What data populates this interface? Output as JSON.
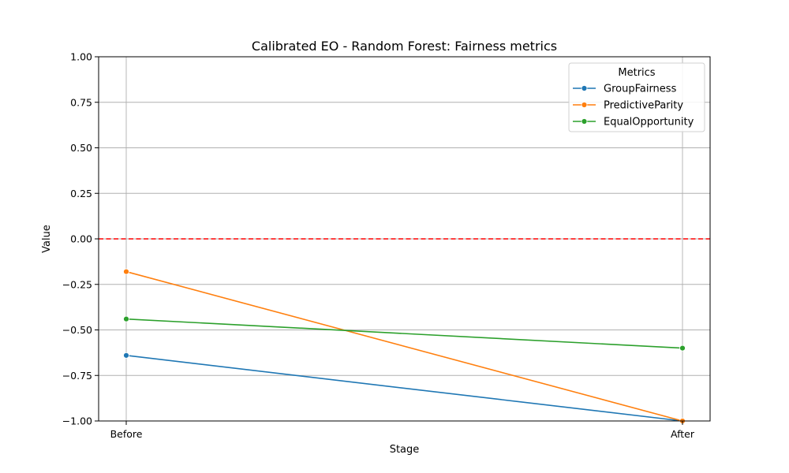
{
  "chart_data": {
    "type": "line",
    "title": "Calibrated EO - Random Forest: Fairness metrics",
    "xlabel": "Stage",
    "ylabel": "Value",
    "categories": [
      "Before",
      "After"
    ],
    "ylim": [
      -1.0,
      1.0
    ],
    "yticks": [
      -1.0,
      -0.75,
      -0.5,
      -0.25,
      0.0,
      0.25,
      0.5,
      0.75,
      1.0
    ],
    "ytick_labels": [
      "−1.00",
      "−0.75",
      "−0.50",
      "−0.25",
      "0.00",
      "0.25",
      "0.50",
      "0.75",
      "1.00"
    ],
    "grid": true,
    "legend": {
      "title": "Metrics",
      "placement": "top-right"
    },
    "reference_line": {
      "y": 0.0,
      "color": "#ff0000",
      "style": "dashed"
    },
    "series": [
      {
        "name": "GroupFairness",
        "values": [
          -0.64,
          -1.0
        ],
        "color": "#1f77b4"
      },
      {
        "name": "PredictiveParity",
        "values": [
          -0.18,
          -1.0
        ],
        "color": "#ff7f0e"
      },
      {
        "name": "EqualOpportunity",
        "values": [
          -0.44,
          -0.6
        ],
        "color": "#2ca02c"
      }
    ]
  }
}
